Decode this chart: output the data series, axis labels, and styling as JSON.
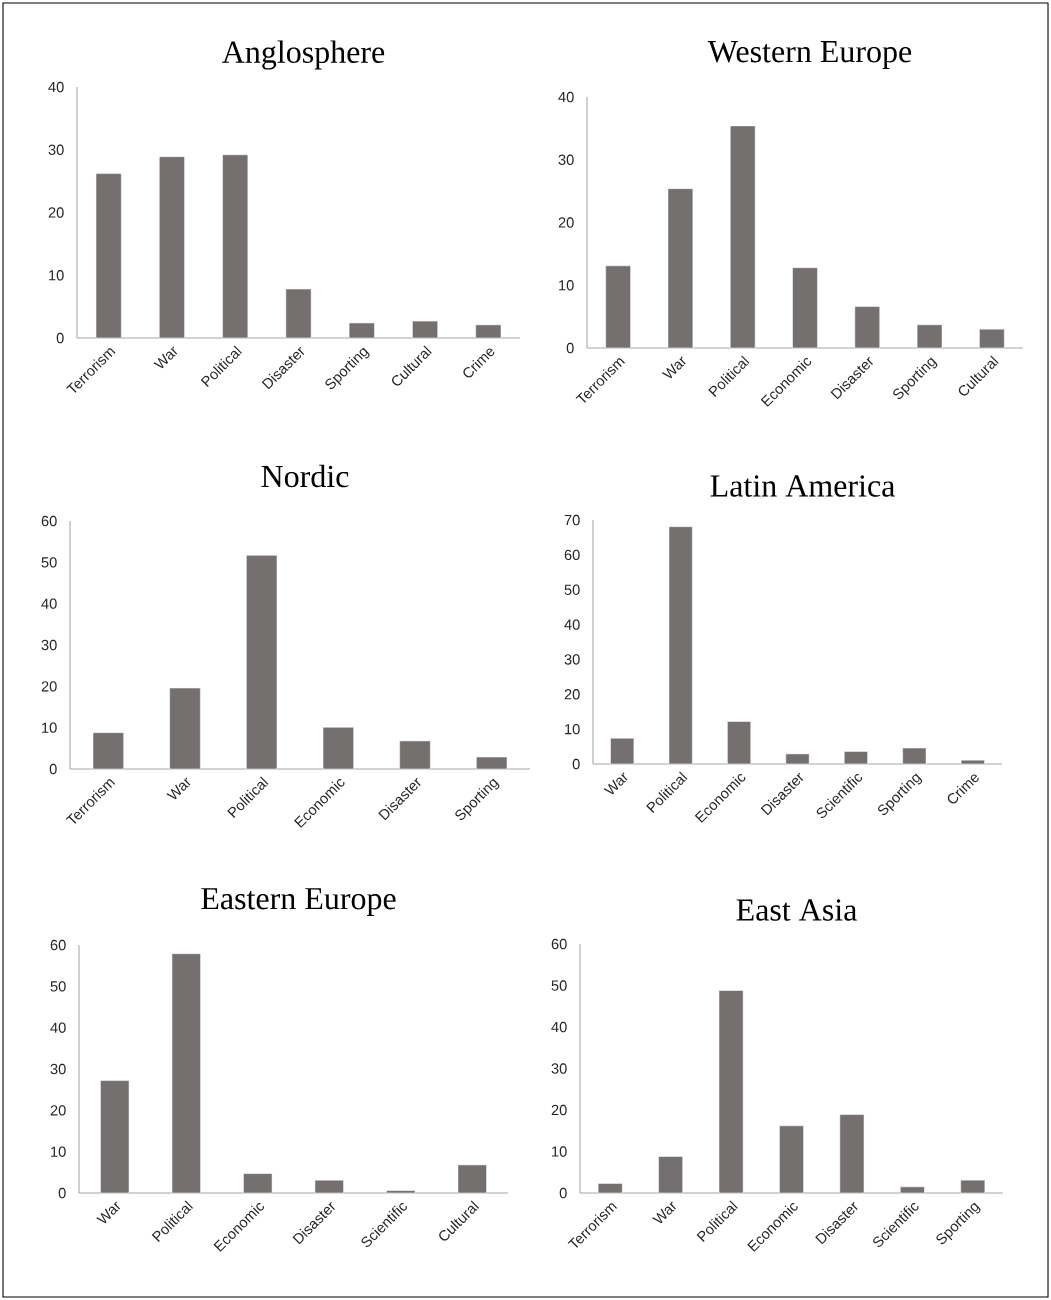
{
  "chart_data": [
    {
      "type": "bar",
      "title": "Anglosphere",
      "categories": [
        "Terrorism",
        "War",
        "Political",
        "Disaster",
        "Sporting",
        "Cultural",
        "Crime"
      ],
      "values": [
        26.2,
        28.9,
        29.2,
        7.8,
        2.4,
        2.7,
        2.1
      ],
      "color": "#757070",
      "ylim": [
        0,
        40
      ],
      "yticks": [
        0,
        10,
        20,
        30,
        40
      ]
    },
    {
      "type": "bar",
      "title": "Western Europe",
      "categories": [
        "Terrorism",
        "War",
        "Political",
        "Economic",
        "Disaster",
        "Sporting",
        "Cultural"
      ],
      "values": [
        13.1,
        25.4,
        35.4,
        12.8,
        6.6,
        3.7,
        3.0
      ],
      "color": "#757070",
      "ylim": [
        0,
        40
      ],
      "yticks": [
        0,
        10,
        20,
        30,
        40
      ]
    },
    {
      "type": "bar",
      "title": "Nordic",
      "categories": [
        "Terrorism",
        "War",
        "Political",
        "Economic",
        "Disaster",
        "Sporting"
      ],
      "values": [
        8.8,
        19.6,
        51.7,
        10.1,
        6.8,
        2.9
      ],
      "color": "#757070",
      "ylim": [
        0,
        60
      ],
      "yticks": [
        0,
        10,
        20,
        30,
        40,
        50,
        60
      ]
    },
    {
      "type": "bar",
      "title": "Latin America",
      "categories": [
        "War",
        "Political",
        "Economic",
        "Disaster",
        "Scientific",
        "Sporting",
        "Crime"
      ],
      "values": [
        7.4,
        68.1,
        12.2,
        2.9,
        3.6,
        4.6,
        1.1
      ],
      "color": "#757070",
      "ylim": [
        0,
        70
      ],
      "yticks": [
        0,
        10,
        20,
        30,
        40,
        50,
        60,
        70
      ]
    },
    {
      "type": "bar",
      "title": "Eastern Europe",
      "categories": [
        "War",
        "Political",
        "Economic",
        "Disaster",
        "Scientific",
        "Cultural"
      ],
      "values": [
        27.2,
        57.9,
        4.7,
        3.1,
        0.6,
        6.8
      ],
      "color": "#757070",
      "ylim": [
        0,
        60
      ],
      "yticks": [
        0,
        10,
        20,
        30,
        40,
        50,
        60
      ]
    },
    {
      "type": "bar",
      "title": "East Asia",
      "categories": [
        "Terrorism",
        "War",
        "Political",
        "Economic",
        "Disaster",
        "Scientific",
        "Sporting"
      ],
      "values": [
        2.3,
        8.8,
        48.8,
        16.2,
        18.9,
        1.5,
        3.1
      ],
      "color": "#757070",
      "ylim": [
        0,
        60
      ],
      "yticks": [
        0,
        10,
        20,
        30,
        40,
        50,
        60
      ]
    }
  ]
}
